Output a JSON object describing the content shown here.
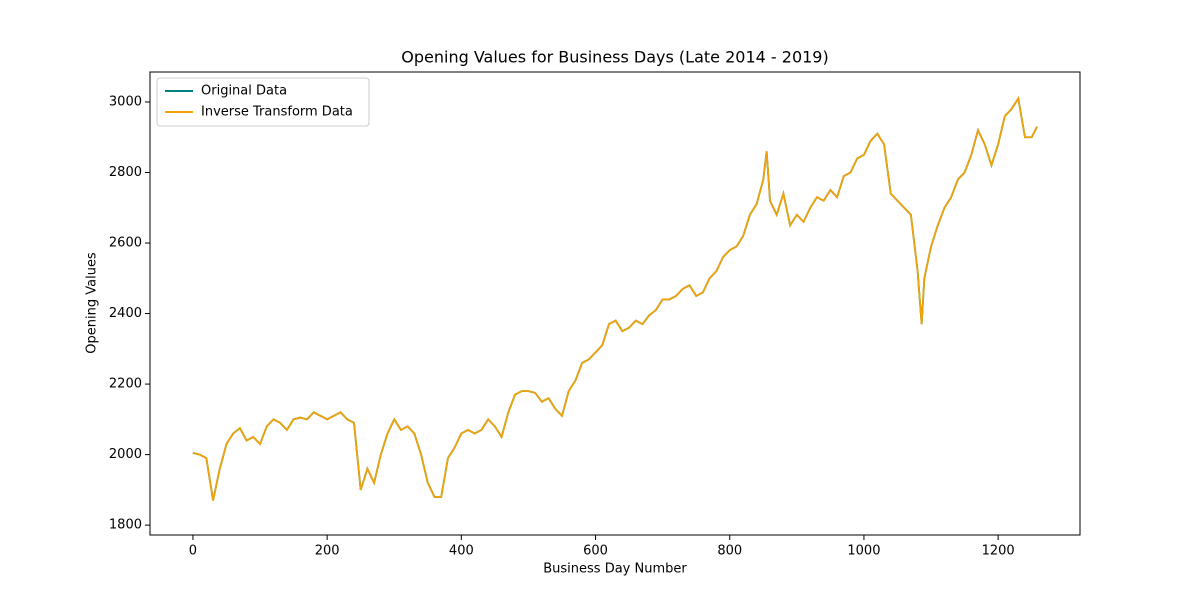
{
  "chart_data": {
    "type": "line",
    "title": "Opening Values for Business Days (Late 2014 - 2019)",
    "xlabel": "Business Day Number",
    "ylabel": "Opening Values",
    "x": [
      0,
      10,
      20,
      30,
      40,
      50,
      60,
      70,
      80,
      90,
      100,
      110,
      120,
      130,
      140,
      150,
      160,
      170,
      180,
      190,
      200,
      210,
      220,
      230,
      240,
      250,
      260,
      270,
      280,
      290,
      300,
      310,
      320,
      330,
      340,
      350,
      360,
      370,
      380,
      390,
      400,
      410,
      420,
      430,
      440,
      450,
      460,
      470,
      480,
      490,
      500,
      510,
      520,
      530,
      540,
      550,
      560,
      570,
      580,
      590,
      600,
      610,
      620,
      630,
      640,
      650,
      660,
      670,
      680,
      690,
      700,
      710,
      720,
      730,
      740,
      750,
      760,
      770,
      780,
      790,
      800,
      810,
      820,
      830,
      840,
      850,
      855,
      860,
      870,
      880,
      890,
      900,
      910,
      920,
      930,
      940,
      950,
      960,
      970,
      980,
      990,
      1000,
      1010,
      1020,
      1030,
      1040,
      1050,
      1060,
      1070,
      1080,
      1086,
      1090,
      1100,
      1110,
      1120,
      1130,
      1140,
      1150,
      1160,
      1170,
      1180,
      1190,
      1200,
      1210,
      1220,
      1230,
      1240,
      1250,
      1258
    ],
    "series": [
      {
        "name": "Original Data",
        "color": "#008080",
        "values": [
          2005,
          2000,
          1990,
          1870,
          1960,
          2030,
          2060,
          2075,
          2040,
          2050,
          2030,
          2080,
          2100,
          2090,
          2070,
          2100,
          2105,
          2100,
          2120,
          2110,
          2100,
          2110,
          2120,
          2100,
          2090,
          1900,
          1960,
          1920,
          2000,
          2060,
          2100,
          2070,
          2080,
          2060,
          2000,
          1920,
          1880,
          1880,
          1990,
          2020,
          2060,
          2070,
          2060,
          2070,
          2100,
          2080,
          2050,
          2120,
          2170,
          2180,
          2180,
          2175,
          2150,
          2160,
          2130,
          2110,
          2180,
          2210,
          2260,
          2270,
          2290,
          2310,
          2370,
          2380,
          2350,
          2360,
          2380,
          2370,
          2395,
          2410,
          2440,
          2440,
          2450,
          2470,
          2480,
          2450,
          2460,
          2500,
          2520,
          2560,
          2580,
          2590,
          2620,
          2680,
          2710,
          2780,
          2860,
          2720,
          2680,
          2740,
          2650,
          2680,
          2660,
          2700,
          2730,
          2720,
          2750,
          2730,
          2790,
          2800,
          2840,
          2850,
          2890,
          2910,
          2880,
          2740,
          2720,
          2700,
          2680,
          2520,
          2370,
          2500,
          2590,
          2650,
          2700,
          2730,
          2780,
          2800,
          2850,
          2920,
          2880,
          2820,
          2880,
          2960,
          2980,
          3010,
          2900,
          2900,
          2930
        ]
      },
      {
        "name": "Inverse Transform Data",
        "color": "#f0a30a",
        "values": [
          2005,
          2000,
          1990,
          1870,
          1960,
          2030,
          2060,
          2075,
          2040,
          2050,
          2030,
          2080,
          2100,
          2090,
          2070,
          2100,
          2105,
          2100,
          2120,
          2110,
          2100,
          2110,
          2120,
          2100,
          2090,
          1900,
          1960,
          1920,
          2000,
          2060,
          2100,
          2070,
          2080,
          2060,
          2000,
          1920,
          1880,
          1880,
          1990,
          2020,
          2060,
          2070,
          2060,
          2070,
          2100,
          2080,
          2050,
          2120,
          2170,
          2180,
          2180,
          2175,
          2150,
          2160,
          2130,
          2110,
          2180,
          2210,
          2260,
          2270,
          2290,
          2310,
          2370,
          2380,
          2350,
          2360,
          2380,
          2370,
          2395,
          2410,
          2440,
          2440,
          2450,
          2470,
          2480,
          2450,
          2460,
          2500,
          2520,
          2560,
          2580,
          2590,
          2620,
          2680,
          2710,
          2780,
          2860,
          2720,
          2680,
          2740,
          2650,
          2680,
          2660,
          2700,
          2730,
          2720,
          2750,
          2730,
          2790,
          2800,
          2840,
          2850,
          2890,
          2910,
          2880,
          2740,
          2720,
          2700,
          2680,
          2520,
          2370,
          2500,
          2590,
          2650,
          2700,
          2730,
          2780,
          2800,
          2850,
          2920,
          2880,
          2820,
          2880,
          2960,
          2980,
          3010,
          2900,
          2900,
          2930
        ]
      }
    ],
    "xlim": [
      -64,
      1322
    ],
    "xticks": [
      0,
      200,
      400,
      600,
      800,
      1000,
      1200
    ],
    "ylim": [
      1772,
      3085
    ],
    "yticks": [
      1800,
      2000,
      2200,
      2400,
      2600,
      2800,
      3000
    ],
    "legend": "upper left"
  }
}
